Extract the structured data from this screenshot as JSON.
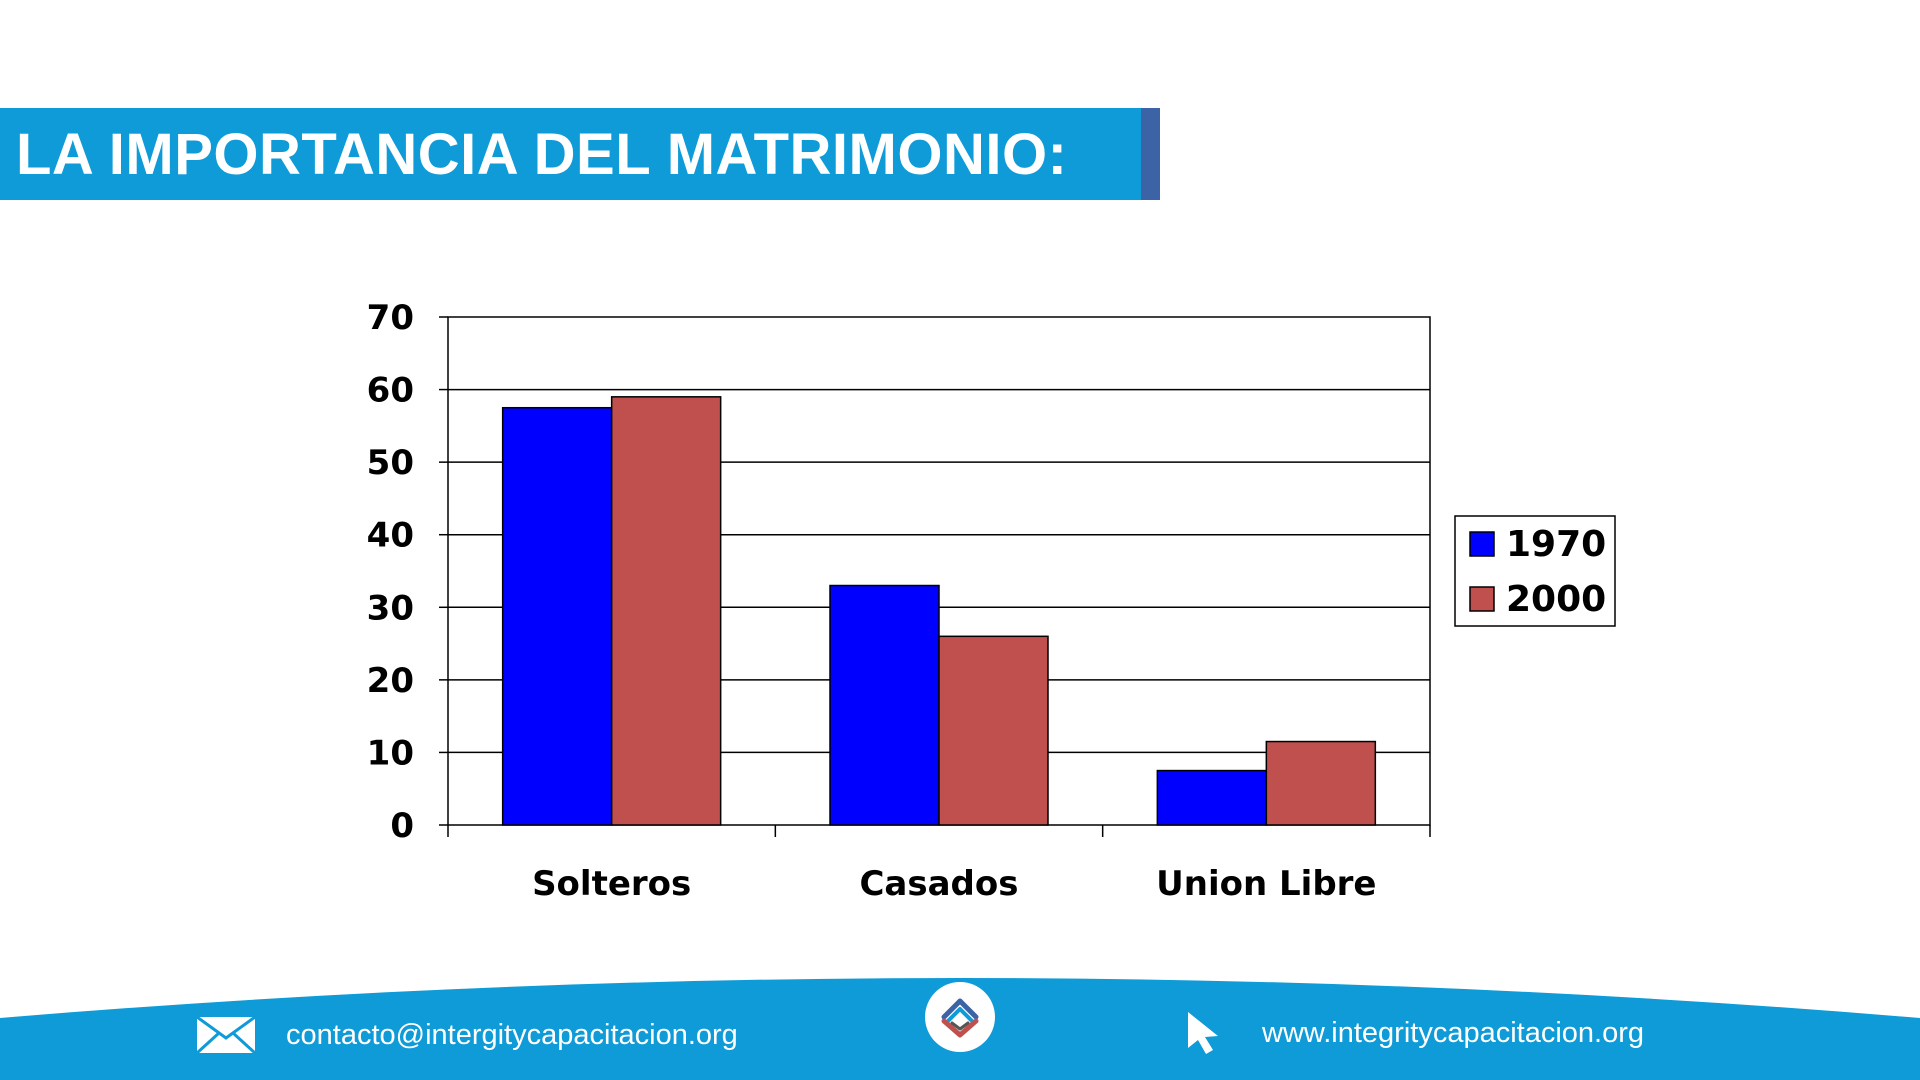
{
  "header": {
    "title": "LA IMPORTANCIA DEL MATRIMONIO:"
  },
  "colors": {
    "banner": "#0f9bd7",
    "banner_edge": "#3b63a6",
    "footer": "#0f9bd7",
    "series_1970": "#0000ff",
    "series_2000": "#c0504d"
  },
  "chart_data": {
    "type": "bar",
    "title": "",
    "xlabel": "",
    "ylabel": "",
    "categories": [
      "Solteros",
      "Casados",
      "Union Libre"
    ],
    "series": [
      {
        "name": "1970",
        "values": [
          57.5,
          33,
          7.5
        ]
      },
      {
        "name": "2000",
        "values": [
          59,
          26,
          11.5
        ]
      }
    ],
    "ylim": [
      0,
      70
    ],
    "yticks": [
      0,
      10,
      20,
      30,
      40,
      50,
      60,
      70
    ],
    "grid": true,
    "legend": "right"
  },
  "footer": {
    "email": "contacto@intergitycapacitacion.org",
    "website": "www.integritycapacitacion.org",
    "email_icon": "envelope-icon",
    "website_icon": "cursor-arrow-icon",
    "logo_icon": "integrity-logo-icon"
  }
}
